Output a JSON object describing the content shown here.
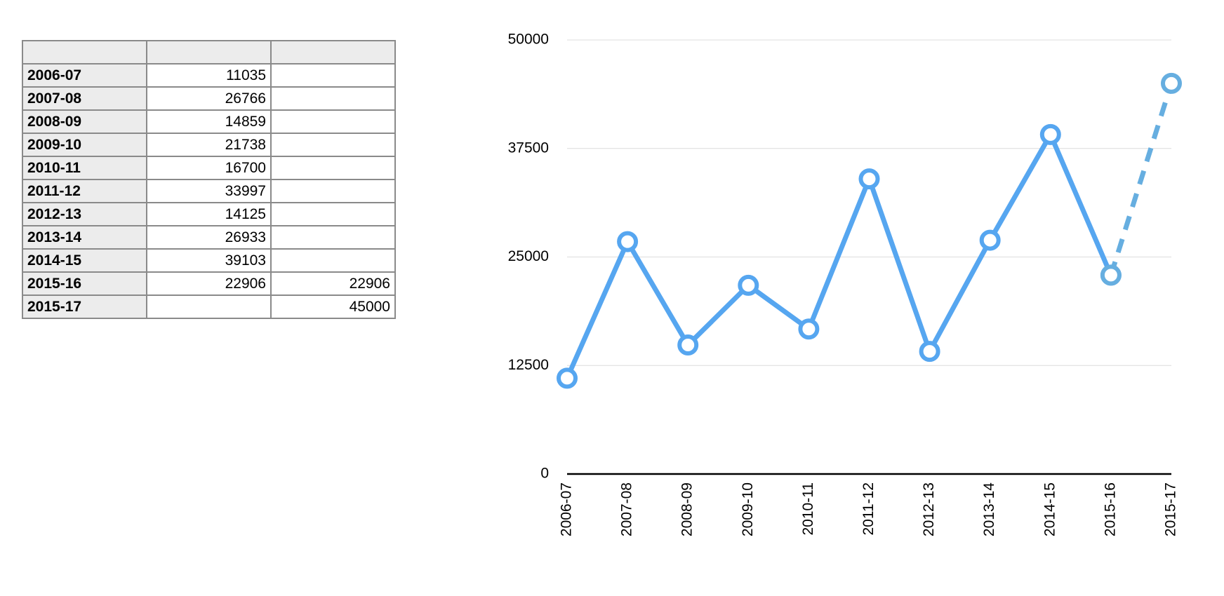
{
  "table": {
    "rows": [
      [
        "2006-07",
        11035,
        null
      ],
      [
        "2007-08",
        26766,
        null
      ],
      [
        "2008-09",
        14859,
        null
      ],
      [
        "2009-10",
        21738,
        null
      ],
      [
        "2010-11",
        16700,
        null
      ],
      [
        "2011-12",
        33997,
        null
      ],
      [
        "2012-13",
        14125,
        null
      ],
      [
        "2013-14",
        26933,
        null
      ],
      [
        "2014-15",
        39103,
        null
      ],
      [
        "2015-16",
        22906,
        22906
      ],
      [
        "2015-17",
        null,
        45000
      ]
    ]
  },
  "chart_data": {
    "type": "line",
    "categories": [
      "2006-07",
      "2007-08",
      "2008-09",
      "2009-10",
      "2010-11",
      "2011-12",
      "2012-13",
      "2013-14",
      "2014-15",
      "2015-16",
      "2015-17"
    ],
    "series": [
      {
        "color": "#56a6f0",
        "dashed": false,
        "values": [
          11035,
          26766,
          14859,
          21738,
          16700,
          33997,
          14125,
          26933,
          39103,
          22906,
          null
        ]
      },
      {
        "color": "#66aee0",
        "dashed": true,
        "values": [
          null,
          null,
          null,
          null,
          null,
          null,
          null,
          null,
          null,
          22906,
          45000
        ]
      }
    ],
    "ylim": [
      0,
      50000
    ],
    "yticks": [
      0,
      12500,
      25000,
      37500,
      50000
    ],
    "grid": true
  }
}
